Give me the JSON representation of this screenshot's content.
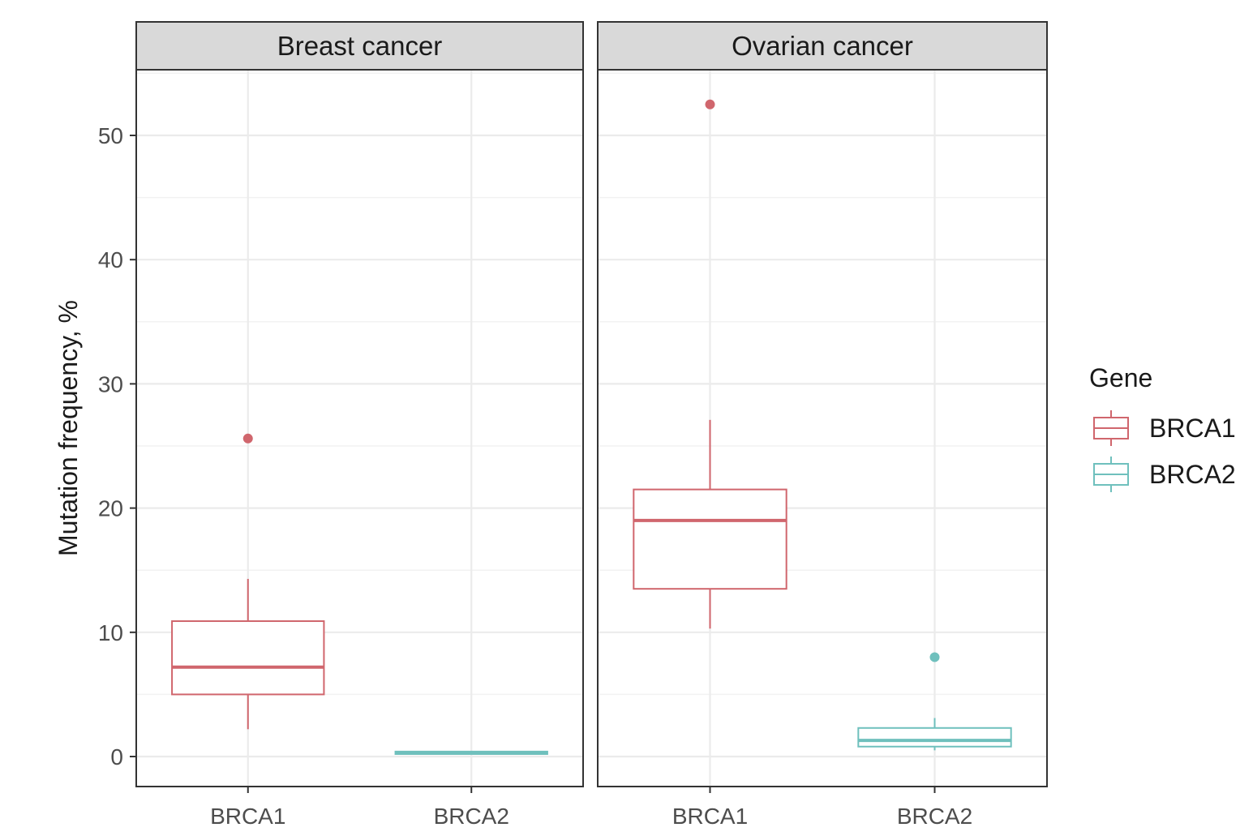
{
  "chart_data": {
    "type": "boxplot",
    "ylabel": "Mutation frequency, %",
    "ylim": [
      -2.5,
      55
    ],
    "yticks": [
      0,
      10,
      20,
      30,
      40,
      50
    ],
    "categories": [
      "BRCA1",
      "BRCA2"
    ],
    "legend": {
      "title": "Gene",
      "position": "right",
      "entries": [
        {
          "name": "BRCA1",
          "color": "#d0666d"
        },
        {
          "name": "BRCA2",
          "color": "#6fc0bd"
        }
      ]
    },
    "panels": [
      {
        "title": "Breast cancer",
        "boxes": [
          {
            "gene": "BRCA1",
            "lower_whisker": 2.2,
            "q1": 5.0,
            "median": 7.2,
            "q3": 10.9,
            "upper_whisker": 14.3,
            "outliers": [
              25.6
            ]
          },
          {
            "gene": "BRCA2",
            "lower_whisker": 0.2,
            "q1": 0.2,
            "median": 0.3,
            "q3": 0.4,
            "upper_whisker": 0.4,
            "outliers": []
          }
        ]
      },
      {
        "title": "Ovarian cancer",
        "boxes": [
          {
            "gene": "BRCA1",
            "lower_whisker": 10.3,
            "q1": 13.5,
            "median": 19.0,
            "q3": 21.5,
            "upper_whisker": 27.1,
            "outliers": [
              52.5
            ]
          },
          {
            "gene": "BRCA2",
            "lower_whisker": 0.5,
            "q1": 0.8,
            "median": 1.3,
            "q3": 2.3,
            "upper_whisker": 3.1,
            "outliers": [
              8.0
            ]
          }
        ]
      }
    ],
    "grid": true
  }
}
